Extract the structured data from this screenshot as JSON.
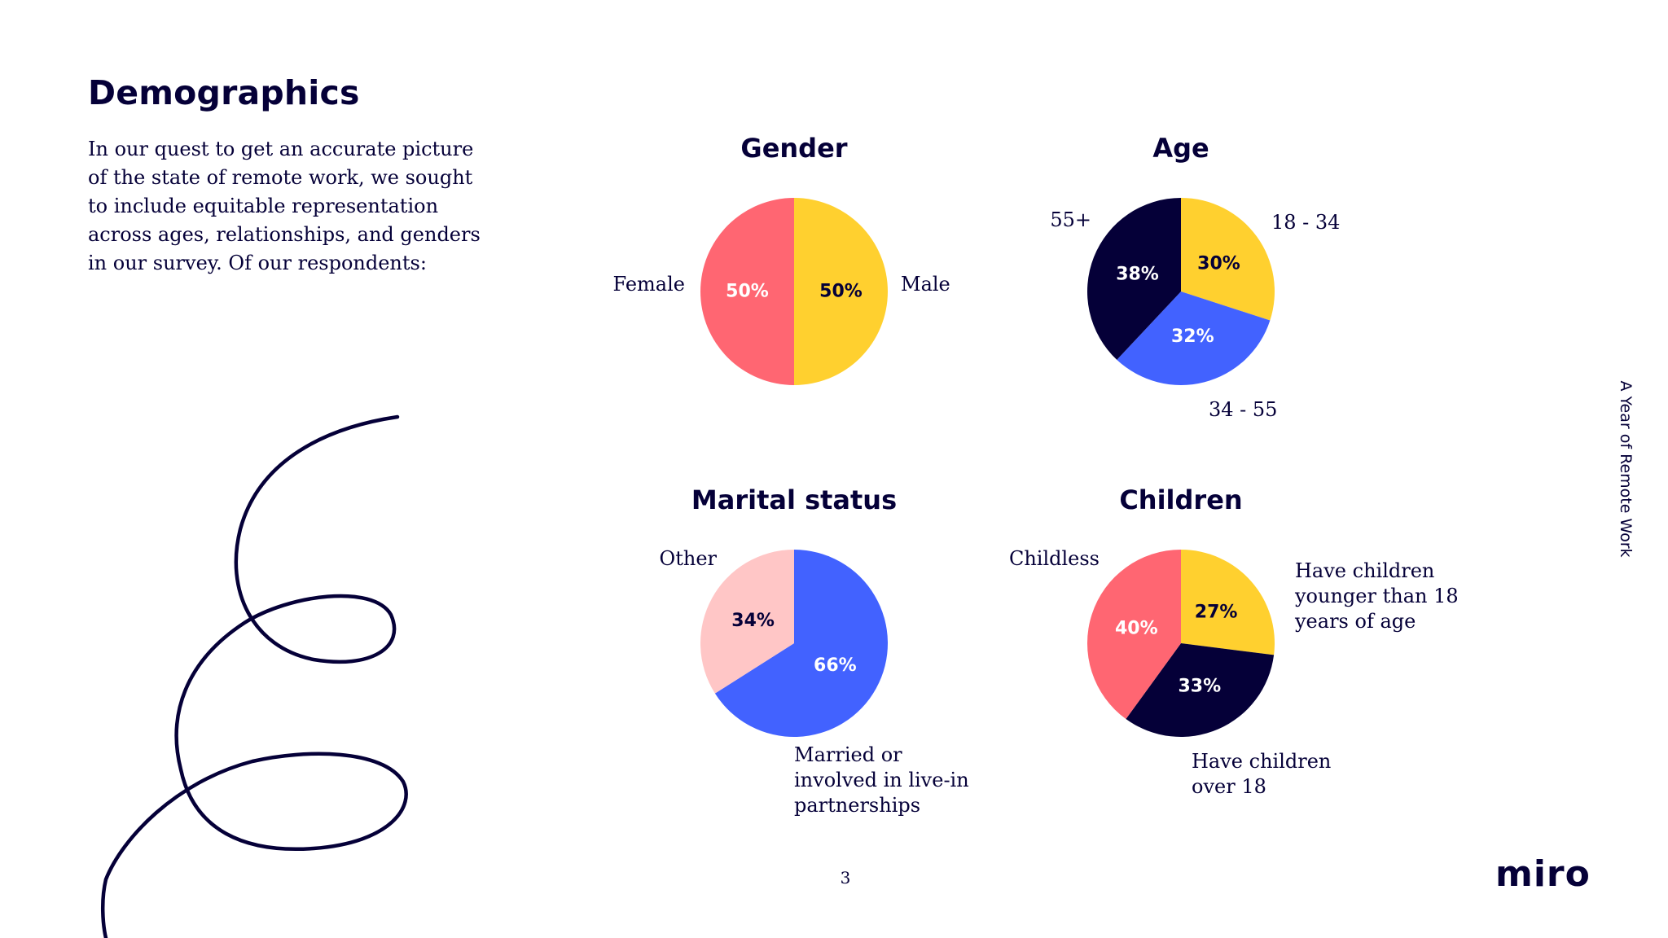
{
  "page": {
    "title": "Demographics",
    "intro": "In our quest to get an accurate picture of the state of remote work, we sought to include equitable representation across ages, relationships, and genders in our survey. Of our respondents:",
    "side_text": "A Year of Remote Work",
    "page_number": "3",
    "logo": "miro"
  },
  "chart_data": [
    {
      "type": "pie",
      "title": "Gender",
      "categories": [
        "Female",
        "Male"
      ],
      "values": [
        50,
        50
      ],
      "value_labels": [
        "50%",
        "50%"
      ],
      "colors": [
        "#FFD02F",
        "#FF6672"
      ],
      "label_colors": [
        "#050038",
        "#ffffff"
      ]
    },
    {
      "type": "pie",
      "title": "Age",
      "categories": [
        "18 - 34",
        "34 - 55",
        "55+"
      ],
      "values": [
        30,
        32,
        38
      ],
      "value_labels": [
        "30%",
        "32%",
        "38%"
      ],
      "colors": [
        "#FFD02F",
        "#4262FF",
        "#050038"
      ],
      "label_colors": [
        "#050038",
        "#ffffff",
        "#ffffff"
      ]
    },
    {
      "type": "pie",
      "title": "Marital status",
      "categories": [
        "Married or\ninvolved in live-in\npartnerships",
        "Other"
      ],
      "values": [
        66,
        34
      ],
      "value_labels": [
        "66%",
        "34%"
      ],
      "colors": [
        "#4262FF",
        "#FFC6C6"
      ],
      "label_colors": [
        "#ffffff",
        "#050038"
      ]
    },
    {
      "type": "pie",
      "title": "Children",
      "categories": [
        "Have children\nyounger than 18\nyears of age",
        "Have children\nover 18",
        "Childless"
      ],
      "values": [
        27,
        33,
        40
      ],
      "value_labels": [
        "27%",
        "33%",
        "40%"
      ],
      "colors": [
        "#FFD02F",
        "#050038",
        "#FF6672"
      ],
      "label_colors": [
        "#050038",
        "#ffffff",
        "#ffffff"
      ]
    }
  ]
}
